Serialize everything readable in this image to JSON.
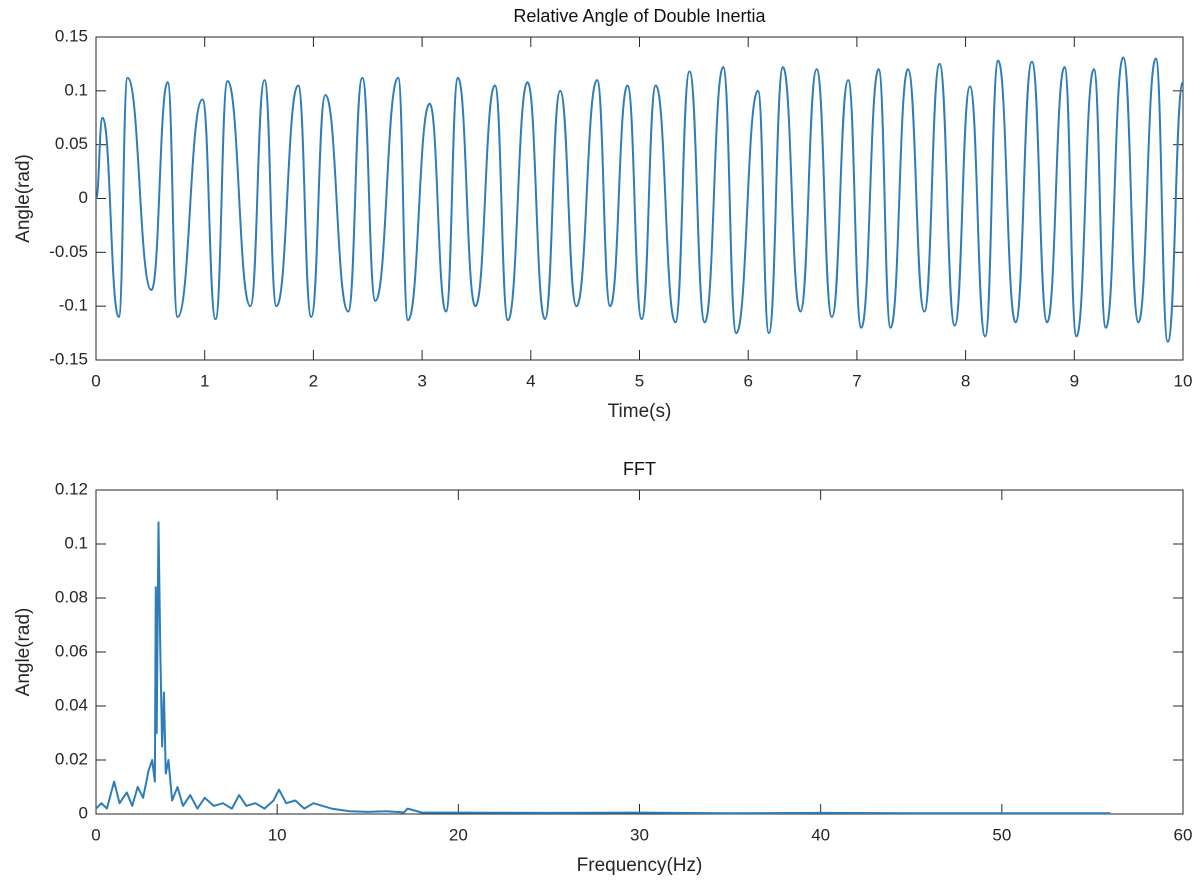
{
  "chart_data": [
    {
      "type": "line",
      "title": "Relative Angle of Double Inertia",
      "xlabel": "Time(s)",
      "ylabel": "Angle(rad)",
      "xlim": [
        0,
        10
      ],
      "xticks": [
        0,
        1,
        2,
        3,
        4,
        5,
        6,
        7,
        8,
        9,
        10
      ],
      "ylim": [
        -0.15,
        0.15
      ],
      "yticks": [
        -0.15,
        -0.1,
        -0.05,
        0,
        0.05,
        0.1,
        0.15
      ],
      "series": [
        {
          "color": "#2f7db8",
          "smooth": true,
          "x": [
            0,
            0.06,
            0.21,
            0.29,
            0.51,
            0.66,
            0.75,
            0.98,
            1.1,
            1.21,
            1.42,
            1.55,
            1.66,
            1.86,
            1.98,
            2.11,
            2.32,
            2.45,
            2.57,
            2.78,
            2.87,
            3.07,
            3.22,
            3.33,
            3.49,
            3.67,
            3.79,
            3.97,
            4.13,
            4.27,
            4.42,
            4.61,
            4.73,
            4.89,
            5.02,
            5.15,
            5.33,
            5.46,
            5.6,
            5.77,
            5.89,
            6.09,
            6.19,
            6.32,
            6.48,
            6.63,
            6.77,
            6.92,
            7.04,
            7.2,
            7.31,
            7.47,
            7.62,
            7.76,
            7.9,
            8.04,
            8.18,
            8.3,
            8.46,
            8.61,
            8.75,
            8.91,
            9.02,
            9.18,
            9.29,
            9.45,
            9.59,
            9.75,
            9.86,
            10.0
          ],
          "values": [
            0,
            0.075,
            -0.11,
            0.112,
            -0.085,
            0.108,
            -0.11,
            0.092,
            -0.112,
            0.109,
            -0.1,
            0.11,
            -0.1,
            0.105,
            -0.11,
            0.096,
            -0.105,
            0.112,
            -0.095,
            0.112,
            -0.113,
            0.088,
            -0.105,
            0.112,
            -0.1,
            0.105,
            -0.113,
            0.108,
            -0.112,
            0.1,
            -0.1,
            0.11,
            -0.1,
            0.105,
            -0.112,
            0.105,
            -0.115,
            0.118,
            -0.115,
            0.122,
            -0.125,
            0.1,
            -0.125,
            0.122,
            -0.105,
            0.12,
            -0.11,
            0.11,
            -0.12,
            0.12,
            -0.12,
            0.12,
            -0.105,
            0.125,
            -0.118,
            0.104,
            -0.128,
            0.128,
            -0.115,
            0.127,
            -0.115,
            0.122,
            -0.128,
            0.12,
            -0.12,
            0.131,
            -0.115,
            0.13,
            -0.133,
            0.108
          ]
        }
      ]
    },
    {
      "type": "line",
      "title": "FFT",
      "xlabel": "Frequency(Hz)",
      "ylabel": "Angle(rad)",
      "xlim": [
        0,
        60
      ],
      "xticks": [
        0,
        10,
        20,
        30,
        40,
        50,
        60
      ],
      "ylim": [
        0,
        0.12
      ],
      "yticks": [
        0,
        0.02,
        0.04,
        0.06,
        0.08,
        0.1,
        0.12
      ],
      "series": [
        {
          "color": "#2f7db8",
          "smooth": false,
          "x": [
            0,
            0.3,
            0.6,
            1.0,
            1.3,
            1.7,
            2.0,
            2.3,
            2.6,
            2.9,
            3.1,
            3.25,
            3.3,
            3.35,
            3.45,
            3.55,
            3.65,
            3.75,
            3.85,
            4.0,
            4.2,
            4.5,
            4.8,
            5.2,
            5.6,
            6.0,
            6.5,
            7.0,
            7.5,
            7.9,
            8.3,
            8.8,
            9.3,
            9.8,
            10.1,
            10.5,
            11.0,
            11.5,
            12.0,
            13,
            14,
            15,
            16,
            17,
            17.2,
            18,
            20,
            25,
            30,
            35,
            40,
            45,
            50,
            56
          ],
          "values": [
            0.002,
            0.004,
            0.002,
            0.012,
            0.004,
            0.008,
            0.003,
            0.01,
            0.006,
            0.016,
            0.02,
            0.012,
            0.084,
            0.03,
            0.108,
            0.06,
            0.025,
            0.045,
            0.015,
            0.02,
            0.005,
            0.01,
            0.003,
            0.007,
            0.002,
            0.006,
            0.003,
            0.004,
            0.002,
            0.007,
            0.003,
            0.004,
            0.002,
            0.005,
            0.009,
            0.004,
            0.005,
            0.002,
            0.004,
            0.002,
            0.001,
            0.0008,
            0.001,
            0.0006,
            0.002,
            0.0005,
            0.0005,
            0.0004,
            0.0005,
            0.0003,
            0.0004,
            0.0003,
            0.0003,
            0.0003
          ]
        }
      ]
    }
  ]
}
